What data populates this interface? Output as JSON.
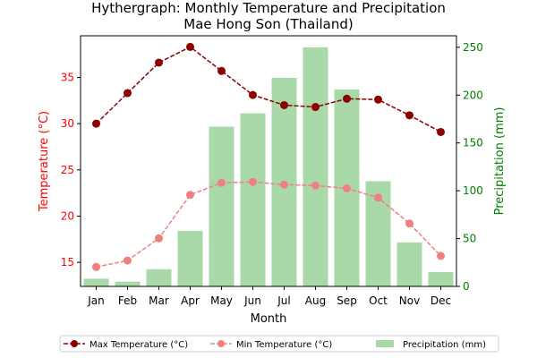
{
  "chart_data": {
    "type": "bar+line",
    "title_line1": "Hythergraph: Monthly Temperature and Precipitation",
    "title_line2": "Mae Hong Son (Thailand)",
    "xlabel": "Month",
    "ylabel_left": "Temperature (°C)",
    "ylabel_right": "Precipitation (mm)",
    "categories": [
      "Jan",
      "Feb",
      "Mar",
      "Apr",
      "May",
      "Jun",
      "Jul",
      "Aug",
      "Sep",
      "Oct",
      "Nov",
      "Dec"
    ],
    "left_axis": {
      "ylim": [
        12.4,
        39.5
      ],
      "ticks": [
        15,
        20,
        25,
        30,
        35
      ],
      "color": "#ff0000"
    },
    "right_axis": {
      "ylim": [
        0,
        262
      ],
      "ticks": [
        0,
        50,
        100,
        150,
        200,
        250
      ],
      "color": "#008000"
    },
    "series": [
      {
        "name": "Max Temperature (°C)",
        "kind": "line",
        "axis": "left",
        "color": "#8b0000",
        "dash": true,
        "values": [
          30.0,
          33.3,
          36.6,
          38.3,
          35.7,
          33.1,
          32.0,
          31.8,
          32.7,
          32.6,
          30.9,
          29.1
        ]
      },
      {
        "name": "Min Temperature (°C)",
        "kind": "line",
        "axis": "left",
        "color": "#f08080",
        "dash": true,
        "values": [
          14.5,
          15.2,
          17.6,
          22.3,
          23.6,
          23.7,
          23.4,
          23.3,
          23.0,
          22.0,
          19.2,
          15.7
        ]
      },
      {
        "name": "Precipitation (mm)",
        "kind": "bar",
        "axis": "right",
        "color": "#a9d9a9",
        "values": [
          8,
          5,
          18,
          58,
          167,
          181,
          218,
          250,
          206,
          110,
          46,
          15
        ]
      }
    ],
    "legend_position": "bottom-center",
    "grid": false
  }
}
